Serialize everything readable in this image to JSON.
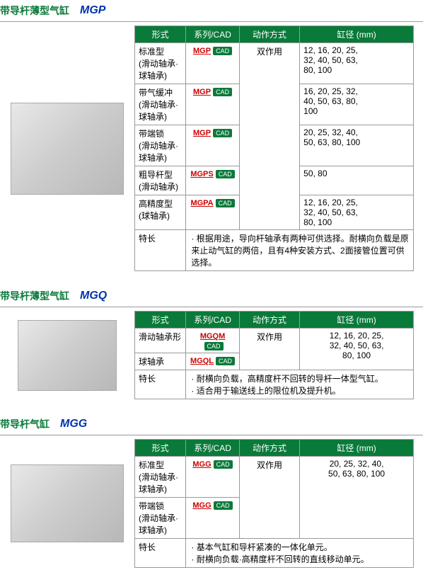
{
  "sections": [
    {
      "title_cn": "带导杆薄型气缸",
      "title_model": "MGP",
      "img_class": "product-img",
      "headers": [
        "形式",
        "系列/CAD",
        "动作方式",
        "缸径 (mm)"
      ],
      "action_text": "双作用",
      "action_rowspan": 5,
      "rows": [
        {
          "type": "标准型\n(滑动轴承·\n球轴承)",
          "series": "MGP",
          "dia": "12, 16, 20, 25,\n32, 40, 50, 63,\n80, 100"
        },
        {
          "type": "带气缓冲\n(滑动轴承·\n球轴承)",
          "series": "MGP",
          "dia": "16, 20, 25, 32,\n40, 50, 63, 80,\n100"
        },
        {
          "type": "带端锁\n(滑动轴承·\n球轴承)",
          "series": "MGP",
          "dia": "20, 25, 32, 40,\n50, 63, 80, 100"
        },
        {
          "type": "粗导杆型\n(滑动轴承)",
          "series": "MGPS",
          "dia": "50, 80"
        },
        {
          "type": "高精度型\n(球轴承)",
          "series": "MGPA",
          "dia": "12, 16, 20, 25,\n32, 40, 50, 63,\n80, 100"
        }
      ],
      "feature_label": "特长",
      "features": "· 根据用途，导向杆轴承有两种可供选择。耐横向负载是原来止动气缸的两倍，且有4种安装方式、2面接管位置可供选择。"
    },
    {
      "title_cn": "带导杆薄型气缸",
      "title_model": "MGQ",
      "img_class": "product-img small",
      "headers": [
        "形式",
        "系列/CAD",
        "动作方式",
        "缸径 (mm)"
      ],
      "action_text": "双作用",
      "action_rowspan": 2,
      "dia_rowspan": 2,
      "shared_dia": "12, 16, 20, 25,\n32, 40, 50, 63,\n80, 100",
      "rows": [
        {
          "type": "滑动轴承形",
          "series": "MGQM"
        },
        {
          "type": "球轴承",
          "series": "MGQL"
        }
      ],
      "feature_label": "特长",
      "features": "· 耐横向负载，高精度杆不回转的导杆一体型气缸。\n· 适合用于输送线上的限位机及提升机。"
    },
    {
      "title_cn": "带导杆气缸",
      "title_model": "MGG",
      "img_class": "product-img med",
      "headers": [
        "形式",
        "系列/CAD",
        "动作方式",
        "缸径 (mm)"
      ],
      "action_text": "双作用",
      "action_rowspan": 2,
      "dia_rowspan": 2,
      "shared_dia": "20, 25, 32, 40,\n50, 63, 80, 100",
      "rows": [
        {
          "type": "标准型\n(滑动轴承·\n球轴承)",
          "series": "MGG"
        },
        {
          "type": "带端锁\n(滑动轴承·\n球轴承)",
          "series": "MGG"
        }
      ],
      "feature_label": "特长",
      "features": "· 基本气缸和导杆紧凑的一体化单元。\n· 耐横向负载·高精度杆不回转的直线移动单元。"
    }
  ],
  "cad_label": "CAD"
}
